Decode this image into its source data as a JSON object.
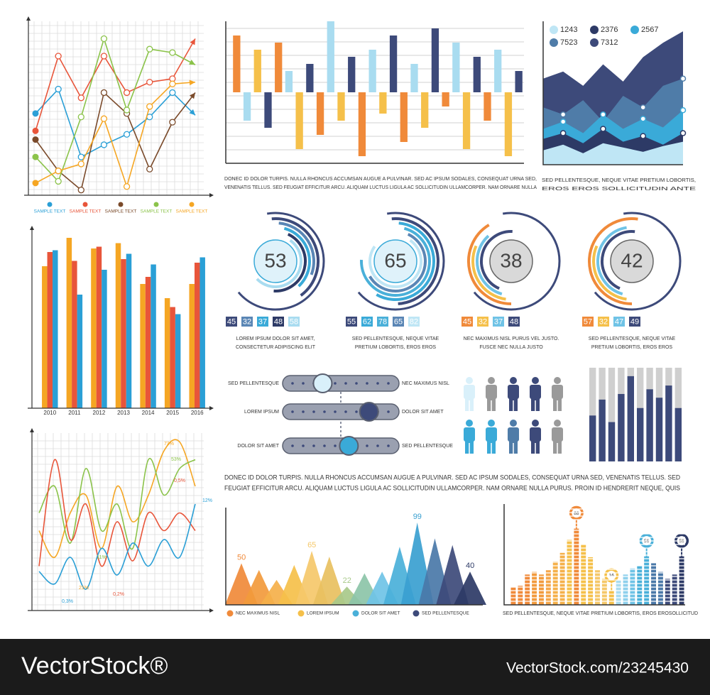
{
  "chart_data": [
    {
      "type": "line",
      "markers": true,
      "grid": true,
      "ylim": [
        0,
        10
      ],
      "categories": [
        null,
        null,
        null,
        null,
        null,
        null,
        null,
        null
      ],
      "series": [
        {
          "name": "SAMPLE TEXT",
          "color": "#2a9fd6",
          "values": [
            4.7,
            6.1,
            2.2,
            2.9,
            3.5,
            4.5,
            5.9,
            4.6
          ]
        },
        {
          "name": "SAMPLE TEXT",
          "color": "#e8553a",
          "values": [
            3.7,
            8.0,
            5.6,
            8.0,
            5.9,
            6.5,
            6.7,
            9.0
          ]
        },
        {
          "name": "SAMPLE TEXT",
          "color": "#7a4a2a",
          "values": [
            3.2,
            1.4,
            0.3,
            5.9,
            4.7,
            1.5,
            4.2,
            5.9
          ]
        },
        {
          "name": "SAMPLE TEXT",
          "color": "#8bc34a",
          "values": [
            2.2,
            0.8,
            4.5,
            9.0,
            4.9,
            8.4,
            8.2,
            7.5
          ]
        },
        {
          "name": "SAMPLE TEXT",
          "color": "#f5a623",
          "values": [
            0.7,
            1.4,
            1.8,
            4.4,
            0.5,
            5.1,
            6.4,
            6.5
          ]
        }
      ]
    },
    {
      "type": "bar",
      "ylim": [
        -10,
        10
      ],
      "grid": true,
      "categories": [
        null,
        null,
        null,
        null,
        null,
        null,
        null,
        null,
        null,
        null,
        null,
        null,
        null,
        null,
        null,
        null,
        null,
        null,
        null,
        null,
        null,
        null,
        null,
        null,
        null,
        null,
        null,
        null
      ],
      "values": [
        8,
        -4,
        6,
        -5,
        7,
        3,
        -8,
        4,
        -6,
        10,
        -4,
        5,
        -9,
        6,
        -3,
        8,
        -7,
        4,
        -5,
        9,
        -2,
        7,
        -8,
        5,
        -4,
        6,
        -9,
        3
      ],
      "colors": [
        "#f08a3a",
        "#a9dcf0",
        "#f5c04a",
        "#3d4a7a"
      ],
      "caption": [
        "DONEC ID DOLOR TURPIS. NULLA RHONCUS ACCUMSAN AUGUE A PULVINAR. SED AC IPSUM SODALES, CONSEQUAT URNA SED,",
        "VENENATIS TELLUS. SED FEUGIAT EFFICITUR ARCU. ALIQUAM LUCTUS LIGULA AC SOLLICITUDIN ULLAMCORPER. NAM ORNARE NULLA"
      ]
    },
    {
      "type": "area",
      "markers": true,
      "ylim": [
        0,
        10
      ],
      "categories": [
        null,
        null,
        null,
        null,
        null,
        null,
        null,
        null
      ],
      "series": [
        {
          "name": "1243",
          "color": "#bfe6f5",
          "values": [
            1.0,
            1.4,
            0.8,
            1.5,
            1.2,
            0.9,
            1.3,
            1.6
          ]
        },
        {
          "name": "2376",
          "color": "#2d3a66",
          "values": [
            1.8,
            2.2,
            1.5,
            2.5,
            1.6,
            2.0,
            1.4,
            2.2
          ]
        },
        {
          "name": "2567",
          "color": "#3aaad8",
          "values": [
            2.5,
            3.0,
            2.2,
            3.5,
            2.5,
            3.2,
            2.6,
            3.8
          ]
        },
        {
          "name": "7523",
          "color": "#4f7ca8",
          "values": [
            4.0,
            3.5,
            4.5,
            3.0,
            4.8,
            4.0,
            5.5,
            6.0
          ]
        },
        {
          "name": "7312",
          "color": "#3d4a7a",
          "values": [
            6.0,
            6.5,
            5.5,
            7.0,
            5.8,
            7.5,
            8.5,
            9.3
          ]
        }
      ],
      "caption": [
        "SED PELLENTESQUE, NEQUE VITAE PRETIUM LOBORTIS,",
        "EROS EROS SOLLICITUDIN ANTE"
      ]
    },
    {
      "type": "bar",
      "ylim": [
        0,
        10
      ],
      "categories": [
        "2010",
        "2011",
        "2012",
        "2013",
        "2014",
        "2015",
        "2016"
      ],
      "series": [
        {
          "color": "#f5a623",
          "values": [
            8.0,
            9.6,
            9.0,
            9.3,
            7.0,
            6.2,
            7.0
          ]
        },
        {
          "color": "#e8553a",
          "values": [
            8.8,
            8.3,
            9.1,
            8.4,
            7.4,
            5.7,
            8.2
          ]
        },
        {
          "color": "#2a9fd6",
          "values": [
            8.9,
            6.4,
            7.8,
            8.7,
            8.1,
            5.3,
            8.5
          ]
        }
      ]
    },
    {
      "type": "line",
      "smooth": true,
      "grid": true,
      "ylim": [
        0,
        10
      ],
      "categories": [
        null,
        null,
        null,
        null,
        null,
        null,
        null,
        null,
        null,
        null,
        null
      ],
      "series": [
        {
          "color": "#f5a623",
          "values": [
            4.5,
            3.0,
            5.5,
            6.5,
            3.5,
            7.0,
            5.0,
            6.5,
            9.0,
            9.5,
            7.0
          ]
        },
        {
          "color": "#8bc34a",
          "values": [
            5.5,
            7.0,
            3.8,
            8.0,
            4.5,
            6.0,
            3.5,
            8.5,
            6.5,
            8.0,
            8.5
          ]
        },
        {
          "color": "#e8553a",
          "values": [
            2.5,
            8.5,
            4.0,
            6.0,
            2.5,
            5.0,
            2.8,
            5.5,
            4.5,
            5.5,
            4.5
          ]
        },
        {
          "color": "#2a9fd6",
          "values": [
            2.2,
            1.5,
            3.0,
            1.2,
            3.5,
            2.0,
            3.8,
            2.5,
            4.0,
            3.0,
            6.0
          ]
        }
      ],
      "annotations": [
        {
          "text": "73%",
          "color": "#f5a623"
        },
        {
          "text": "53%",
          "color": "#8bc34a"
        },
        {
          "text": "0,5%",
          "color": "#e8553a"
        },
        {
          "text": "12%",
          "color": "#2a9fd6"
        },
        {
          "text": "11%",
          "color": "#8bc34a"
        },
        {
          "text": "21%",
          "color": "#f5a623"
        },
        {
          "text": "0,2%",
          "color": "#e8553a"
        },
        {
          "text": "0,3%",
          "color": "#2a9fd6"
        }
      ]
    },
    {
      "type": "triangle",
      "ylim": [
        0,
        100
      ],
      "categories": [
        null,
        null,
        null,
        null,
        null,
        null,
        null,
        null,
        null,
        null,
        null,
        null,
        null,
        null
      ],
      "values": [
        50,
        42,
        30,
        48,
        65,
        58,
        22,
        38,
        40,
        70,
        99,
        80,
        72,
        40
      ],
      "value_labels": [
        "50",
        null,
        null,
        null,
        "65",
        null,
        "22",
        null,
        null,
        null,
        "99",
        null,
        null,
        "40"
      ],
      "colors": [
        "#f08a3a",
        "#f29a3c",
        "#f5b04a",
        "#f5c04a",
        "#f5c86a",
        "#e8c060",
        "#a8c98a",
        "#8cc4a8",
        "#6fc3e6",
        "#4ab0d9",
        "#3aa0d0",
        "#4a78a8",
        "#3d4a7a",
        "#2d3a66"
      ],
      "legend": [
        {
          "name": "NEC MAXIMUS NISL",
          "color": "#f08a3a"
        },
        {
          "name": "LOREM IPSUM",
          "color": "#f5c04a"
        },
        {
          "name": "DOLOR SIT AMET",
          "color": "#4ab0d9"
        },
        {
          "name": "SED PELLENTESQUE",
          "color": "#3d4a7a"
        }
      ]
    },
    {
      "type": "bar",
      "ylim": [
        0,
        100
      ],
      "categories": [
        null,
        null,
        null,
        null,
        null,
        null,
        null,
        null,
        null,
        null,
        null,
        null,
        null,
        null,
        null,
        null,
        null,
        null,
        null,
        null,
        null,
        null,
        null,
        null,
        null
      ],
      "values": [
        20,
        22,
        35,
        38,
        35,
        40,
        50,
        60,
        75,
        88,
        70,
        55,
        40,
        30,
        16,
        28,
        35,
        42,
        45,
        56,
        48,
        38,
        30,
        35,
        56
      ],
      "value_labels": [
        null,
        null,
        null,
        null,
        null,
        null,
        null,
        null,
        null,
        "88",
        null,
        null,
        null,
        null,
        "16",
        null,
        null,
        null,
        null,
        "56",
        null,
        null,
        null,
        null,
        "56"
      ],
      "colors": [
        "#f08a3a",
        "#f08a3a",
        "#f08a3a",
        "#f29a3c",
        "#f29a3c",
        "#f5a64a",
        "#f5b04a",
        "#f5b04a",
        "#f5c04a",
        "#f08a3a",
        "#f5c04a",
        "#f5c04a",
        "#f5c86a",
        "#f5c86a",
        "#f5c04a",
        "#a9dcf0",
        "#8fd0ec",
        "#6fc3e6",
        "#4ab0d9",
        "#4ab0d9",
        "#4a78a8",
        "#4a78a8",
        "#3d4a7a",
        "#3d4a7a",
        "#2d3a66"
      ],
      "caption": [
        "SED PELLENTESQUE, NEQUE VITAE PRETIUM LOBORTIS, EROS EROSOLLICITUD"
      ]
    },
    {
      "type": "bar",
      "ylim": [
        0,
        10
      ],
      "color": "#3d4a7a",
      "background_color": "#cfcfcf",
      "categories": [
        null,
        null,
        null,
        null,
        null,
        null,
        null,
        null,
        null,
        null
      ],
      "values": [
        4.9,
        6.6,
        4.2,
        7.2,
        9.1,
        5.7,
        7.7,
        6.8,
        8.1,
        5.7
      ]
    }
  ],
  "gauges": [
    {
      "value": 53,
      "parts": [
        45,
        32,
        37,
        48,
        58
      ],
      "colors": [
        "#3d4a7a",
        "#5a86b5",
        "#3aaad8",
        "#2d3a66",
        "#a9dcf0"
      ],
      "caption": [
        "LOREM IPSUM DOLOR SIT AMET,",
        "CONSECTETUR ADIPISCING ELIT"
      ]
    },
    {
      "value": 65,
      "parts": [
        55,
        62,
        78,
        65,
        82
      ],
      "colors": [
        "#3d4a7a",
        "#3aaad8",
        "#4ab0d9",
        "#5a86b5",
        "#bfe6f5"
      ],
      "caption": [
        "SED PELLENTESQUE, NEQUE VITAE",
        "PRETIUM LOBORTIS, EROS EROS"
      ]
    },
    {
      "value": 38,
      "parts": [
        45,
        32,
        37,
        48
      ],
      "colors": [
        "#f08a3a",
        "#f5c04a",
        "#6fc3e6",
        "#3d4a7a"
      ],
      "caption": [
        "NEC MAXIMUS NISL PURUS VEL JUSTO.",
        "FUSCE NEC NULLA JUSTO"
      ]
    },
    {
      "value": 42,
      "parts": [
        57,
        32,
        47,
        49
      ],
      "colors": [
        "#f08a3a",
        "#f5c04a",
        "#6fc3e6",
        "#3d4a7a"
      ],
      "caption": [
        "SED PELLENTESQUE, NEQUE VITAE",
        "PRETIUM LOBORTIS, EROS EROS"
      ]
    }
  ],
  "sliders": {
    "range": [
      0,
      100
    ],
    "rows": [
      {
        "left": "SED PELLENTESQUE",
        "right": "NEC MAXIMUS NISL",
        "value": 32,
        "color": "#d9f0fa"
      },
      {
        "left": "LOREM IPSUM",
        "right": "DOLOR SIT AMET",
        "value": 78,
        "color": "#3d4a7a"
      },
      {
        "left": "DOLOR SIT AMET",
        "right": "SED PELLENTESQUE",
        "value": 58,
        "color": "#3aaad8"
      }
    ]
  },
  "paragraph": [
    "DONEC ID DOLOR TURPIS. NULLA RHONCUS ACCUMSAN AUGUE A PULVINAR. SED AC IPSUM SODALES, CONSEQUAT URNA SED, VENENATIS TELLUS. SED",
    "FEUGIAT EFFICITUR ARCU. ALIQUAM LUCTUS LIGULA AC SOLLICITUDIN ULLAMCORPER. NAM ORNARE NULLA PURUS. PROIN ID HENDRERIT NEQUE, QUIS"
  ],
  "footer": {
    "brand": "VectorStock®",
    "id": "VectorStock.com/23245430"
  }
}
